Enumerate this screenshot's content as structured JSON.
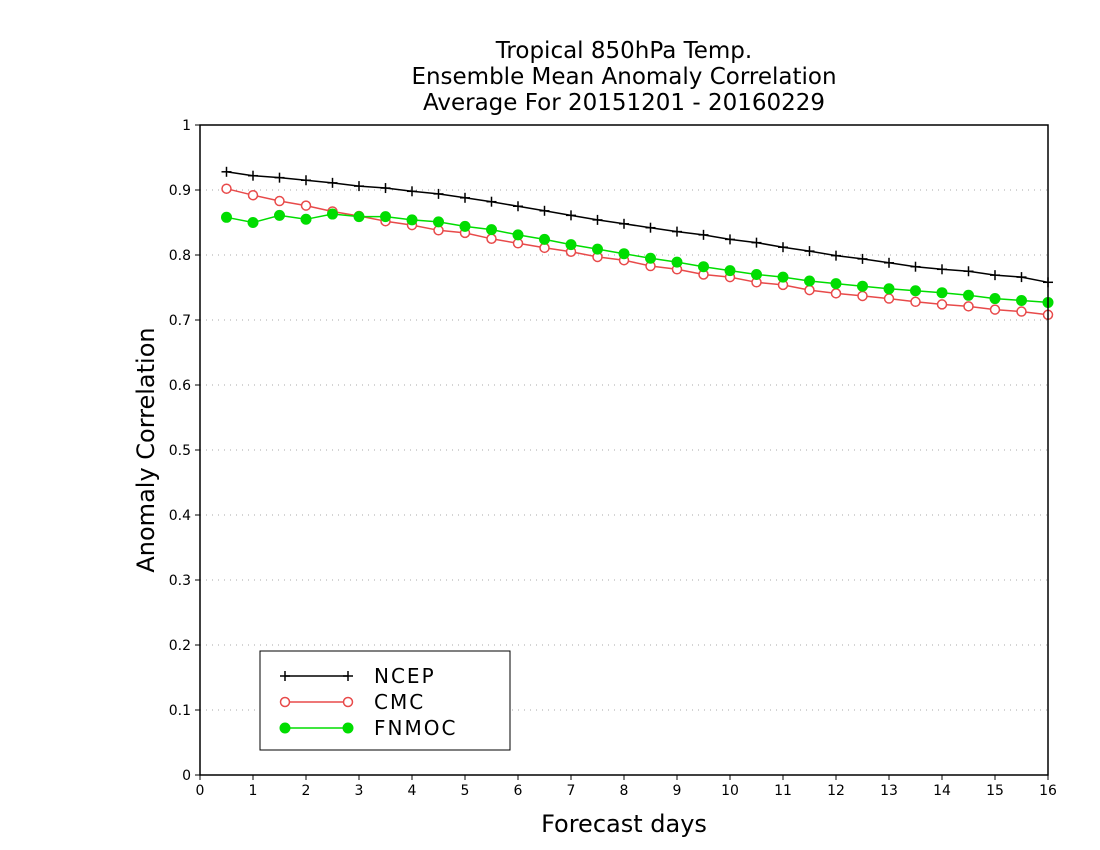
{
  "chart_data": {
    "type": "line",
    "title": [
      "Tropical 850hPa Temp.",
      "Ensemble Mean Anomaly Correlation",
      "Average For 20151201 - 20160229"
    ],
    "xlabel": "Forecast days",
    "ylabel": "Anomaly Correlation",
    "xlim": [
      0,
      16
    ],
    "ylim": [
      0,
      1
    ],
    "xticks": [
      "0",
      "1",
      "2",
      "3",
      "4",
      "5",
      "6",
      "7",
      "8",
      "9",
      "10",
      "11",
      "12",
      "13",
      "14",
      "15",
      "16"
    ],
    "yticks": [
      "0",
      "0.1",
      "0.2",
      "0.3",
      "0.4",
      "0.5",
      "0.6",
      "0.7",
      "0.8",
      "0.9",
      "1"
    ],
    "grid": "dotted horizontal",
    "legend_position": "bottom-left",
    "x": [
      0.5,
      1,
      1.5,
      2,
      2.5,
      3,
      3.5,
      4,
      4.5,
      5,
      5.5,
      6,
      6.5,
      7,
      7.5,
      8,
      8.5,
      9,
      9.5,
      10,
      10.5,
      11,
      11.5,
      12,
      12.5,
      13,
      13.5,
      14,
      14.5,
      15,
      15.5,
      16
    ],
    "series": [
      {
        "name": "NCEP",
        "color": "#000000",
        "marker": "plus",
        "values": [
          0.928,
          0.922,
          0.919,
          0.915,
          0.911,
          0.906,
          0.903,
          0.898,
          0.894,
          0.888,
          0.882,
          0.875,
          0.868,
          0.861,
          0.854,
          0.848,
          0.842,
          0.836,
          0.831,
          0.824,
          0.819,
          0.812,
          0.806,
          0.799,
          0.794,
          0.788,
          0.782,
          0.778,
          0.775,
          0.769,
          0.766,
          0.758
        ]
      },
      {
        "name": "CMC",
        "color": "#e84a4a",
        "marker": "open-circle",
        "values": [
          0.902,
          0.892,
          0.883,
          0.876,
          0.867,
          0.86,
          0.852,
          0.846,
          0.838,
          0.834,
          0.825,
          0.818,
          0.811,
          0.805,
          0.797,
          0.792,
          0.783,
          0.778,
          0.77,
          0.766,
          0.758,
          0.754,
          0.746,
          0.741,
          0.737,
          0.733,
          0.728,
          0.724,
          0.721,
          0.716,
          0.713,
          0.708
        ]
      },
      {
        "name": "FNMOC",
        "color": "#00dd00",
        "marker": "filled-circle",
        "values": [
          0.858,
          0.85,
          0.861,
          0.855,
          0.863,
          0.859,
          0.859,
          0.854,
          0.851,
          0.844,
          0.839,
          0.831,
          0.824,
          0.816,
          0.809,
          0.802,
          0.795,
          0.789,
          0.782,
          0.776,
          0.77,
          0.766,
          0.76,
          0.756,
          0.752,
          0.748,
          0.745,
          0.742,
          0.738,
          0.733,
          0.73,
          0.727
        ]
      }
    ]
  }
}
